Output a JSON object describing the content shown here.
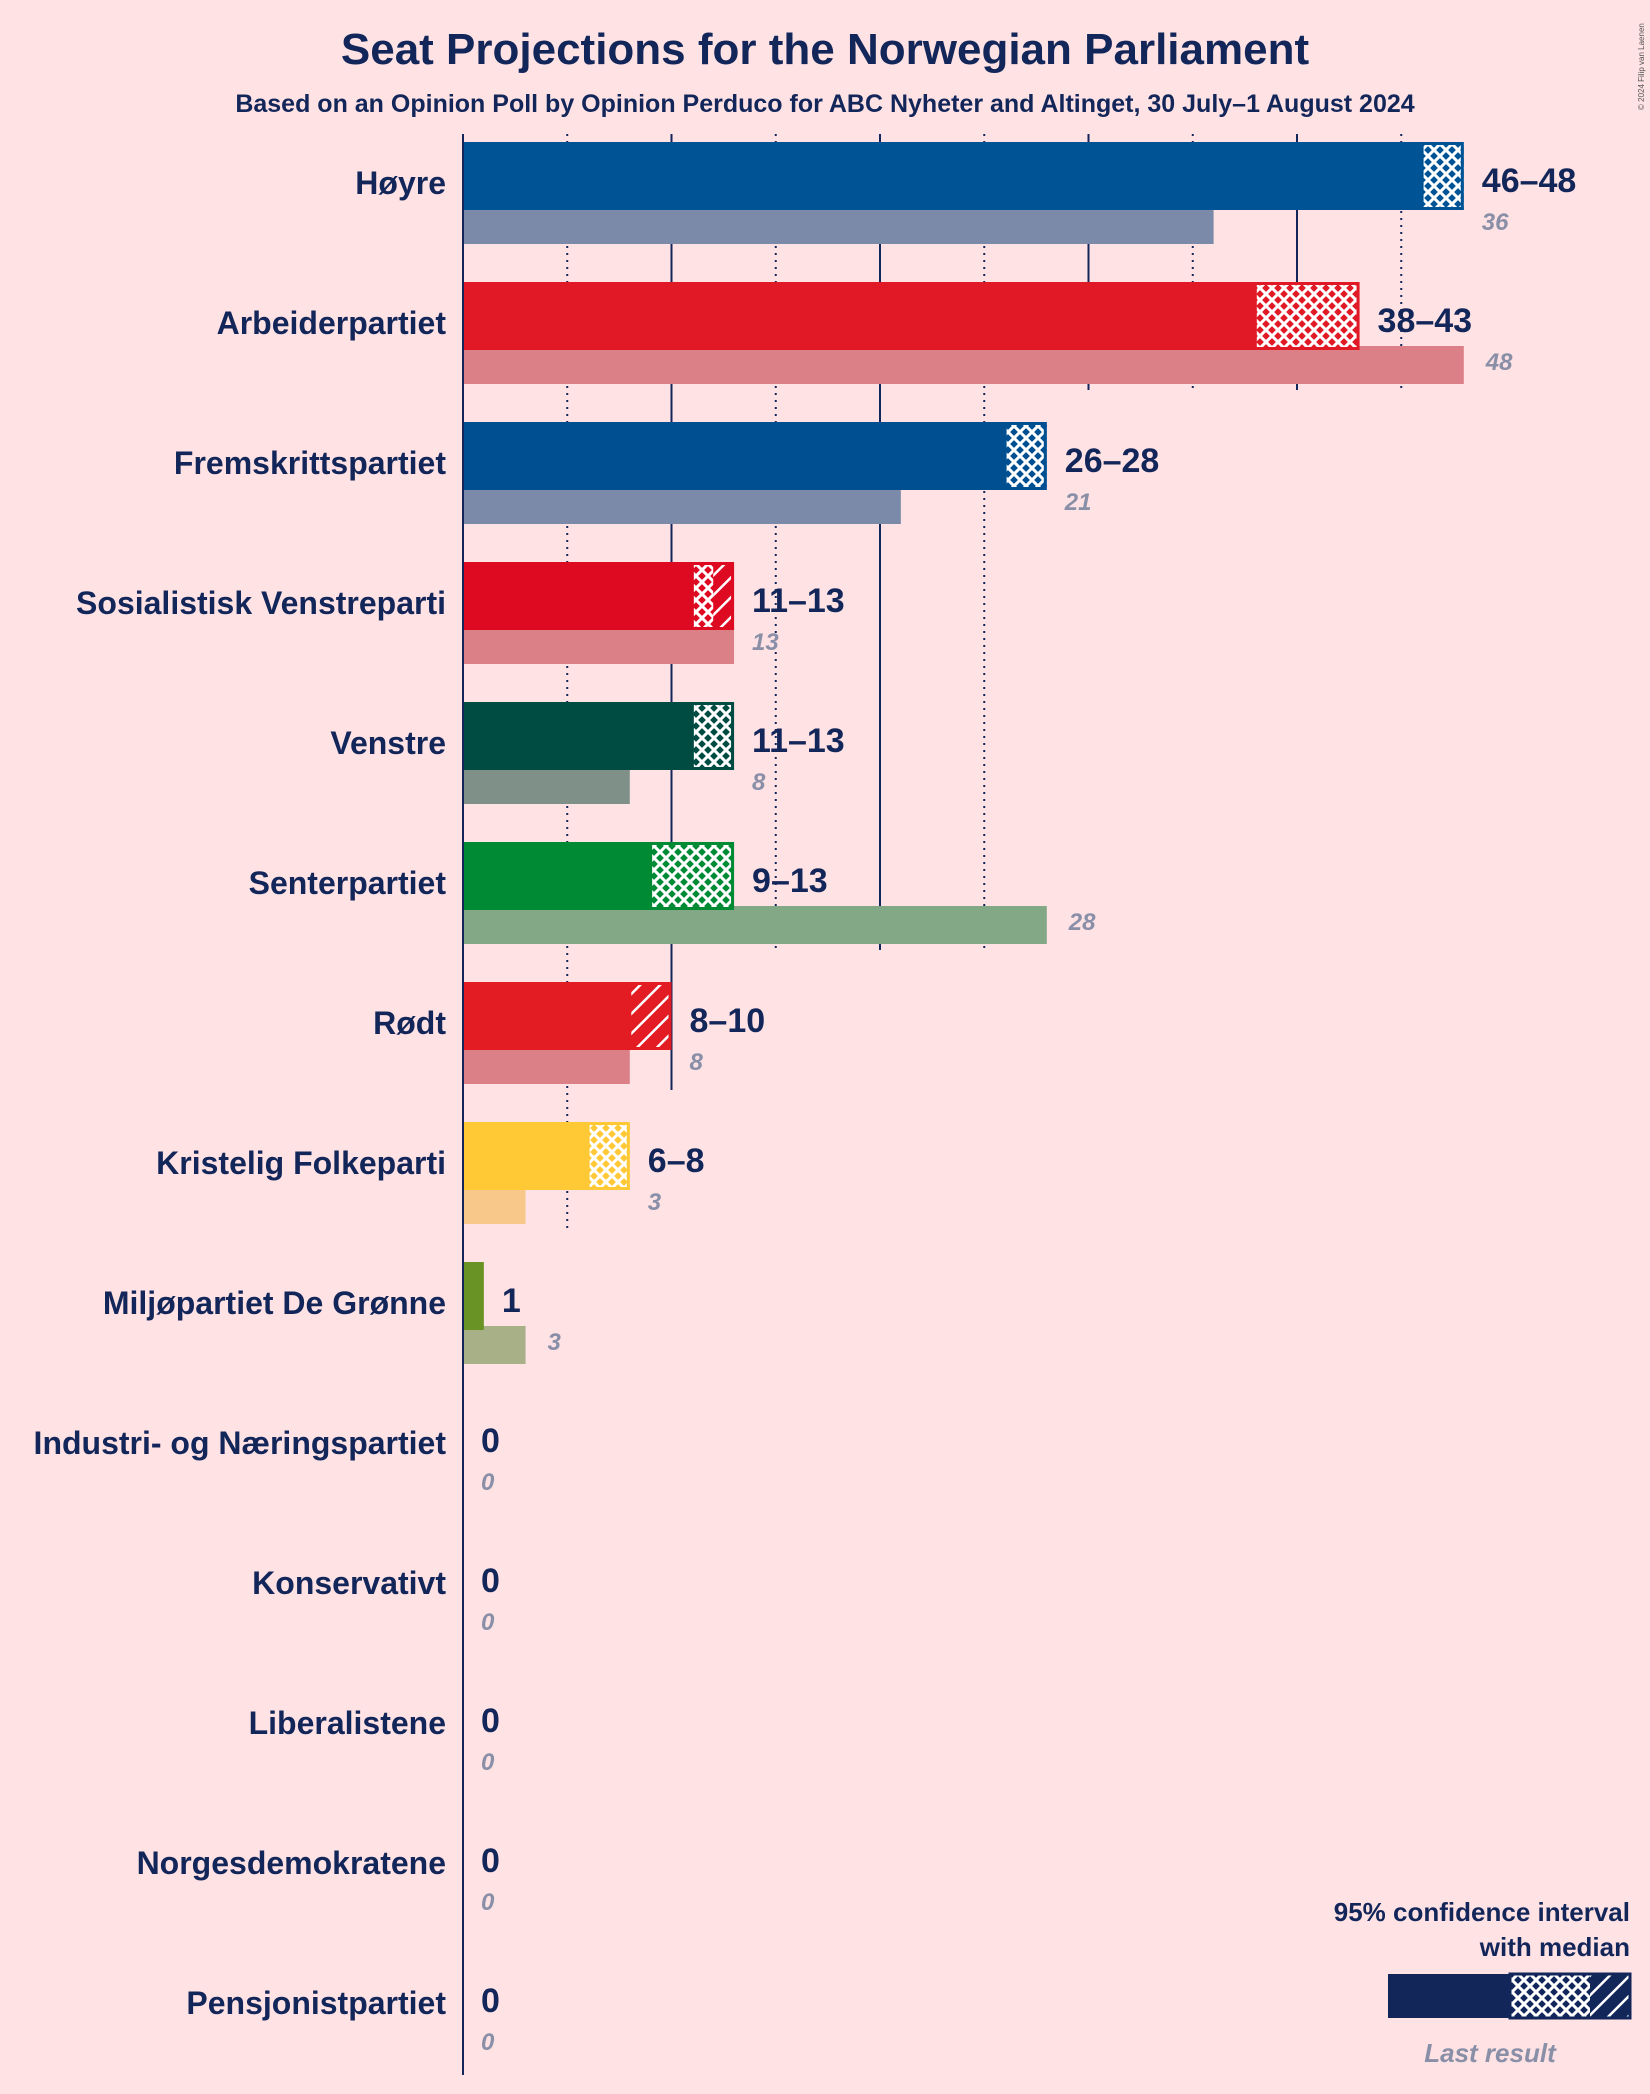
{
  "title": "Seat Projections for the Norwegian Parliament",
  "subtitle": "Based on an Opinion Poll by Opinion Perduco for ABC Nyheter and Altinget, 30 July–1 August 2024",
  "copyright": "© 2024 Filip van Laenen",
  "legend": {
    "ci_line1": "95% confidence interval",
    "ci_line2": "with median",
    "last_result": "Last result"
  },
  "chart_data": {
    "type": "bar",
    "orientation": "horizontal",
    "x_range": [
      0,
      48
    ],
    "gridlines_every": 5,
    "series": [
      {
        "party": "Høyre",
        "low": 46,
        "median": 48,
        "high": 48,
        "range_label": "46–48",
        "last": 36,
        "color": "#005496",
        "last_color": "#7a8aa8"
      },
      {
        "party": "Arbeiderpartiet",
        "low": 38,
        "median": 43,
        "high": 43,
        "range_label": "38–43",
        "last": 48,
        "color": "#E11926",
        "last_color": "#dc8088"
      },
      {
        "party": "Fremskrittspartiet",
        "low": 26,
        "median": 28,
        "high": 28,
        "range_label": "26–28",
        "last": 21,
        "color": "#004F91",
        "last_color": "#7a8aa8"
      },
      {
        "party": "Sosialistisk Venstreparti",
        "low": 11,
        "median": 12,
        "high": 13,
        "range_label": "11–13",
        "last": 13,
        "color": "#DE0A22",
        "last_color": "#dc8088"
      },
      {
        "party": "Venstre",
        "low": 11,
        "median": 13,
        "high": 13,
        "range_label": "11–13",
        "last": 8,
        "color": "#004B42",
        "last_color": "#7e9088"
      },
      {
        "party": "Senterpartiet",
        "low": 9,
        "median": 13,
        "high": 13,
        "range_label": "9–13",
        "last": 28,
        "color": "#008A34",
        "last_color": "#82a886"
      },
      {
        "party": "Rødt",
        "low": 8,
        "median": 8,
        "high": 10,
        "range_label": "8–10",
        "last": 8,
        "color": "#E31C24",
        "last_color": "#dc8088"
      },
      {
        "party": "Kristelig Folkeparti",
        "low": 6,
        "median": 8,
        "high": 8,
        "range_label": "6–8",
        "last": 3,
        "color": "#FFC835",
        "last_color": "#f7c88a"
      },
      {
        "party": "Miljøpartiet De Grønne",
        "low": 1,
        "median": 1,
        "high": 1,
        "range_label": "1",
        "last": 3,
        "color": "#6A9325",
        "last_color": "#a8b088"
      },
      {
        "party": "Industri- og Næringspartiet",
        "low": 0,
        "median": 0,
        "high": 0,
        "range_label": "0",
        "last": 0,
        "color": "#12265a",
        "last_color": "#8a8fa8"
      },
      {
        "party": "Konservativt",
        "low": 0,
        "median": 0,
        "high": 0,
        "range_label": "0",
        "last": 0,
        "color": "#12265a",
        "last_color": "#8a8fa8"
      },
      {
        "party": "Liberalistene",
        "low": 0,
        "median": 0,
        "high": 0,
        "range_label": "0",
        "last": 0,
        "color": "#12265a",
        "last_color": "#8a8fa8"
      },
      {
        "party": "Norgesdemokratene",
        "low": 0,
        "median": 0,
        "high": 0,
        "range_label": "0",
        "last": 0,
        "color": "#12265a",
        "last_color": "#8a8fa8"
      },
      {
        "party": "Pensjonistpartiet",
        "low": 0,
        "median": 0,
        "high": 0,
        "range_label": "0",
        "last": 0,
        "color": "#12265a",
        "last_color": "#8a8fa8"
      }
    ]
  }
}
